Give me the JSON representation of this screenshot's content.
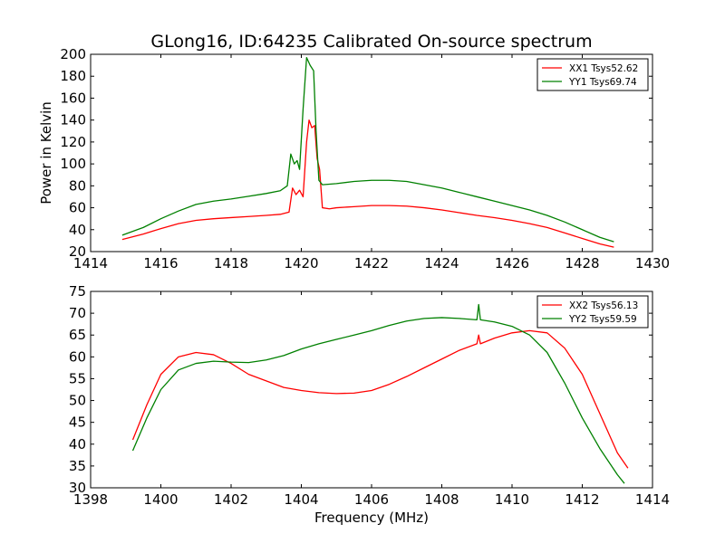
{
  "chart_data": [
    {
      "type": "line",
      "title": "GLong16, ID:64235 Calibrated On-source spectrum",
      "xlabel": "",
      "ylabel": "Power in Kelvin",
      "xlim": [
        1414,
        1430
      ],
      "ylim": [
        20,
        200
      ],
      "xticks": [
        "1414",
        "1416",
        "1418",
        "1420",
        "1422",
        "1424",
        "1426",
        "1428",
        "1430"
      ],
      "yticks": [
        "20",
        "40",
        "60",
        "80",
        "100",
        "120",
        "140",
        "160",
        "180",
        "200"
      ],
      "grid": false,
      "legend_position": "top-right",
      "series": [
        {
          "name": "XX1 Tsys52.62",
          "color": "#ff0000",
          "points": [
            [
              1414.9,
              31
            ],
            [
              1415.5,
              36
            ],
            [
              1416,
              41
            ],
            [
              1416.5,
              45.5
            ],
            [
              1417,
              48.5
            ],
            [
              1417.5,
              50
            ],
            [
              1418,
              51
            ],
            [
              1418.5,
              52
            ],
            [
              1419,
              53
            ],
            [
              1419.4,
              54
            ],
            [
              1419.65,
              56
            ],
            [
              1419.75,
              78
            ],
            [
              1419.85,
              72
            ],
            [
              1419.95,
              76
            ],
            [
              1420.05,
              70
            ],
            [
              1420.15,
              120
            ],
            [
              1420.22,
              140
            ],
            [
              1420.3,
              133
            ],
            [
              1420.38,
              135
            ],
            [
              1420.45,
              105
            ],
            [
              1420.52,
              95
            ],
            [
              1420.6,
              60
            ],
            [
              1420.8,
              59
            ],
            [
              1421,
              60
            ],
            [
              1421.5,
              61
            ],
            [
              1422,
              62
            ],
            [
              1422.5,
              62
            ],
            [
              1423,
              61.5
            ],
            [
              1423.5,
              60
            ],
            [
              1424,
              58
            ],
            [
              1424.5,
              55.5
            ],
            [
              1425,
              53
            ],
            [
              1425.5,
              51
            ],
            [
              1426,
              48.5
            ],
            [
              1426.5,
              45.5
            ],
            [
              1427,
              42
            ],
            [
              1427.5,
              37
            ],
            [
              1428,
              32
            ],
            [
              1428.5,
              27
            ],
            [
              1428.9,
              24
            ]
          ]
        },
        {
          "name": "YY1 Tsys69.74",
          "color": "#008000",
          "points": [
            [
              1414.9,
              35
            ],
            [
              1415.5,
              42
            ],
            [
              1416,
              50
            ],
            [
              1416.5,
              57
            ],
            [
              1417,
              63
            ],
            [
              1417.5,
              66
            ],
            [
              1418,
              68
            ],
            [
              1418.5,
              70.5
            ],
            [
              1419,
              73
            ],
            [
              1419.4,
              75.5
            ],
            [
              1419.6,
              80
            ],
            [
              1419.7,
              109
            ],
            [
              1419.8,
              100
            ],
            [
              1419.88,
              103
            ],
            [
              1419.95,
              95
            ],
            [
              1420.05,
              150
            ],
            [
              1420.15,
              197
            ],
            [
              1420.25,
              190
            ],
            [
              1420.35,
              185
            ],
            [
              1420.42,
              130
            ],
            [
              1420.5,
              85
            ],
            [
              1420.6,
              81
            ],
            [
              1421,
              82
            ],
            [
              1421.5,
              84
            ],
            [
              1422,
              85
            ],
            [
              1422.5,
              85
            ],
            [
              1423,
              84
            ],
            [
              1423.5,
              81
            ],
            [
              1424,
              78
            ],
            [
              1424.5,
              74
            ],
            [
              1425,
              70
            ],
            [
              1425.5,
              66
            ],
            [
              1426,
              62
            ],
            [
              1426.5,
              58
            ],
            [
              1427,
              53
            ],
            [
              1427.5,
              47
            ],
            [
              1428,
              40
            ],
            [
              1428.5,
              33
            ],
            [
              1428.9,
              29
            ]
          ]
        }
      ]
    },
    {
      "type": "line",
      "title": "",
      "xlabel": "Frequency (MHz)",
      "ylabel": "",
      "xlim": [
        1398,
        1414
      ],
      "ylim": [
        30,
        75
      ],
      "xticks": [
        "1398",
        "1400",
        "1402",
        "1404",
        "1406",
        "1408",
        "1410",
        "1412",
        "1414"
      ],
      "yticks": [
        "30",
        "35",
        "40",
        "45",
        "50",
        "55",
        "60",
        "65",
        "70",
        "75"
      ],
      "grid": false,
      "legend_position": "top-right",
      "series": [
        {
          "name": "XX2 Tsys56.13",
          "color": "#ff0000",
          "points": [
            [
              1399.2,
              41
            ],
            [
              1399.6,
              49
            ],
            [
              1400,
              56
            ],
            [
              1400.5,
              60
            ],
            [
              1401,
              61
            ],
            [
              1401.5,
              60.5
            ],
            [
              1402,
              58.5
            ],
            [
              1402.5,
              56
            ],
            [
              1403,
              54.5
            ],
            [
              1403.5,
              53
            ],
            [
              1404,
              52.3
            ],
            [
              1404.5,
              51.8
            ],
            [
              1405,
              51.6
            ],
            [
              1405.5,
              51.7
            ],
            [
              1406,
              52.3
            ],
            [
              1406.5,
              53.7
            ],
            [
              1407,
              55.5
            ],
            [
              1407.5,
              57.5
            ],
            [
              1408,
              59.5
            ],
            [
              1408.5,
              61.5
            ],
            [
              1409,
              63
            ],
            [
              1409.05,
              65
            ],
            [
              1409.1,
              63
            ],
            [
              1409.5,
              64.3
            ],
            [
              1410,
              65.5
            ],
            [
              1410.5,
              66
            ],
            [
              1411,
              65.5
            ],
            [
              1411.5,
              62
            ],
            [
              1412,
              56
            ],
            [
              1412.5,
              47
            ],
            [
              1413,
              38
            ],
            [
              1413.3,
              34.5
            ]
          ]
        },
        {
          "name": "YY2 Tsys59.59",
          "color": "#008000",
          "points": [
            [
              1399.2,
              38.5
            ],
            [
              1399.6,
              46
            ],
            [
              1400,
              52.5
            ],
            [
              1400.5,
              57
            ],
            [
              1401,
              58.5
            ],
            [
              1401.5,
              59
            ],
            [
              1402,
              58.8
            ],
            [
              1402.5,
              58.7
            ],
            [
              1403,
              59.3
            ],
            [
              1403.5,
              60.3
            ],
            [
              1404,
              61.8
            ],
            [
              1404.5,
              63
            ],
            [
              1405,
              64
            ],
            [
              1405.5,
              65
            ],
            [
              1406,
              66
            ],
            [
              1406.5,
              67.2
            ],
            [
              1407,
              68.2
            ],
            [
              1407.5,
              68.8
            ],
            [
              1408,
              69
            ],
            [
              1408.5,
              68.8
            ],
            [
              1409,
              68.5
            ],
            [
              1409.05,
              72
            ],
            [
              1409.1,
              68.5
            ],
            [
              1409.5,
              68
            ],
            [
              1410,
              67
            ],
            [
              1410.5,
              65
            ],
            [
              1411,
              61
            ],
            [
              1411.5,
              54
            ],
            [
              1412,
              46
            ],
            [
              1412.5,
              39
            ],
            [
              1413,
              33
            ],
            [
              1413.2,
              31
            ]
          ]
        }
      ]
    }
  ]
}
